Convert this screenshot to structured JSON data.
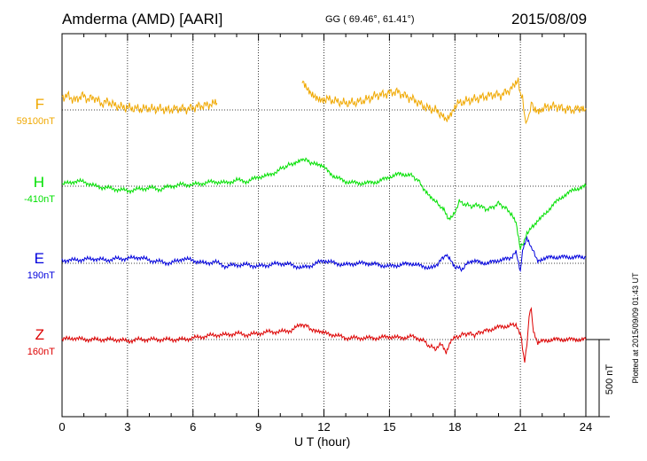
{
  "header": {
    "station": "Amderma (AMD)  [AARI]",
    "coords": "GG ( 69.46°,  61.41°)",
    "date": "2015/08/09"
  },
  "footer": {
    "plotted": "Plotted at 2015/09/09 01:43 UT",
    "scale": "500 nT"
  },
  "chart_data": {
    "type": "line",
    "title": "Amderma (AMD)  [AARI]",
    "xlabel": "U T (hour)",
    "ylabel": "",
    "xlim": [
      0,
      24
    ],
    "xticks": [
      0,
      3,
      6,
      9,
      12,
      15,
      18,
      21,
      24
    ],
    "grid": true,
    "scale_bar_nT": 500,
    "colors": {
      "F": "#f0a800",
      "H": "#00e000",
      "E": "#0000dd",
      "Z": "#dd0000"
    },
    "series": [
      {
        "name": "F",
        "baseline": "59100nT",
        "color": "#f0a800",
        "gaps": [
          [
            7.1,
            11.0
          ]
        ],
        "x": [
          0,
          0.3,
          0.6,
          0.9,
          1.2,
          1.5,
          1.8,
          2.1,
          2.4,
          2.7,
          3.0,
          3.3,
          3.6,
          3.9,
          4.2,
          4.5,
          4.8,
          5.1,
          5.4,
          5.7,
          6.0,
          6.3,
          6.6,
          6.9,
          7.1,
          11.0,
          11.2,
          11.4,
          11.6,
          11.8,
          12.0,
          12.3,
          12.6,
          12.9,
          13.2,
          13.5,
          13.8,
          14.1,
          14.4,
          14.7,
          15.0,
          15.3,
          15.6,
          15.9,
          16.2,
          16.5,
          16.8,
          17.1,
          17.4,
          17.6,
          17.8,
          18.0,
          18.3,
          18.6,
          18.9,
          19.2,
          19.5,
          19.8,
          20.1,
          20.4,
          20.7,
          20.9,
          21.0,
          21.1,
          21.2,
          21.3,
          21.4,
          21.5,
          21.6,
          21.8,
          22.0,
          22.3,
          22.6,
          22.9,
          23.2,
          23.5,
          23.8,
          24.0
        ],
        "values": [
          85,
          90,
          60,
          95,
          70,
          80,
          40,
          55,
          30,
          20,
          15,
          10,
          5,
          10,
          5,
          8,
          0,
          5,
          10,
          5,
          15,
          25,
          30,
          40,
          45,
          180,
          140,
          110,
          95,
          80,
          75,
          65,
          55,
          45,
          45,
          50,
          60,
          75,
          95,
          100,
          110,
          120,
          100,
          80,
          60,
          30,
          10,
          0,
          -30,
          -60,
          -20,
          30,
          50,
          60,
          70,
          80,
          90,
          100,
          95,
          120,
          150,
          180,
          120,
          60,
          -30,
          -100,
          -20,
          40,
          10,
          0,
          10,
          20,
          25,
          10,
          5,
          0,
          20,
          10
        ]
      },
      {
        "name": "H",
        "baseline": "-410nT",
        "color": "#00e000",
        "x": [
          0,
          0.5,
          1.0,
          1.5,
          2.0,
          2.5,
          3.0,
          3.5,
          4.0,
          4.5,
          5.0,
          5.5,
          6.0,
          6.5,
          7.0,
          7.5,
          8.0,
          8.5,
          9.0,
          9.5,
          10.0,
          10.3,
          10.6,
          11.0,
          11.3,
          11.6,
          12.0,
          12.5,
          13.0,
          13.5,
          14.0,
          14.5,
          15.0,
          15.5,
          16.0,
          16.3,
          16.6,
          17.0,
          17.3,
          17.5,
          17.7,
          17.9,
          18.2,
          18.5,
          18.8,
          19.1,
          19.4,
          19.7,
          20.0,
          20.3,
          20.6,
          20.8,
          21.0,
          21.1,
          21.3,
          21.6,
          22.0,
          22.5,
          23.0,
          23.5,
          24.0
        ],
        "values": [
          10,
          30,
          30,
          0,
          -10,
          -20,
          -30,
          -20,
          -10,
          -20,
          0,
          10,
          10,
          20,
          30,
          20,
          40,
          30,
          60,
          70,
          110,
          130,
          150,
          180,
          160,
          140,
          120,
          60,
          30,
          20,
          20,
          30,
          60,
          80,
          70,
          40,
          -20,
          -80,
          -130,
          -150,
          -220,
          -200,
          -100,
          -120,
          -130,
          -120,
          -150,
          -140,
          -110,
          -140,
          -180,
          -230,
          -400,
          -380,
          -300,
          -260,
          -200,
          -120,
          -60,
          -20,
          0
        ]
      },
      {
        "name": "E",
        "baseline": "190nT",
        "color": "#0000dd",
        "x": [
          0,
          0.5,
          1.0,
          1.5,
          2.0,
          2.5,
          3.0,
          3.5,
          4.0,
          4.5,
          5.0,
          5.5,
          6.0,
          6.5,
          7.0,
          7.5,
          8.0,
          8.5,
          9.0,
          9.5,
          10.0,
          10.5,
          11.0,
          11.5,
          12.0,
          12.5,
          13.0,
          13.5,
          14.0,
          14.5,
          15.0,
          15.5,
          16.0,
          16.5,
          17.0,
          17.3,
          17.6,
          17.8,
          18.0,
          18.3,
          18.6,
          19.0,
          19.5,
          20.0,
          20.5,
          20.8,
          21.0,
          21.1,
          21.3,
          21.5,
          21.8,
          22.0,
          22.5,
          23.0,
          23.5,
          24.0
        ],
        "values": [
          20,
          20,
          25,
          30,
          20,
          30,
          30,
          40,
          20,
          10,
          0,
          30,
          20,
          0,
          10,
          -20,
          -10,
          -10,
          -20,
          -10,
          0,
          -10,
          -30,
          -10,
          20,
          0,
          -10,
          0,
          0,
          -10,
          -20,
          -10,
          0,
          -20,
          -30,
          10,
          60,
          30,
          -20,
          -40,
          0,
          10,
          0,
          20,
          30,
          70,
          -60,
          80,
          160,
          100,
          20,
          30,
          40,
          40,
          40,
          40
        ]
      },
      {
        "name": "Z",
        "baseline": "160nT",
        "color": "#dd0000",
        "x": [
          0,
          0.5,
          1.0,
          1.5,
          2.0,
          2.5,
          3.0,
          3.5,
          4.0,
          4.5,
          5.0,
          5.5,
          6.0,
          6.5,
          7.0,
          7.5,
          8.0,
          8.5,
          9.0,
          9.5,
          10.0,
          10.5,
          11.0,
          11.3,
          11.6,
          12.0,
          12.5,
          13.0,
          13.5,
          14.0,
          14.5,
          15.0,
          15.5,
          16.0,
          16.5,
          16.8,
          17.1,
          17.4,
          17.6,
          17.8,
          18.0,
          18.3,
          18.6,
          18.9,
          19.2,
          19.5,
          20.0,
          20.5,
          20.8,
          21.0,
          21.1,
          21.2,
          21.3,
          21.4,
          21.5,
          21.6,
          21.8,
          22.0,
          22.5,
          23.0,
          23.5,
          24.0
        ],
        "values": [
          0,
          10,
          0,
          0,
          0,
          0,
          -10,
          0,
          0,
          0,
          0,
          0,
          10,
          20,
          30,
          30,
          40,
          30,
          40,
          50,
          50,
          60,
          100,
          80,
          50,
          40,
          30,
          10,
          10,
          10,
          10,
          20,
          10,
          20,
          0,
          -40,
          -60,
          -30,
          -90,
          -20,
          10,
          30,
          40,
          30,
          50,
          60,
          80,
          90,
          100,
          40,
          -50,
          -150,
          -30,
          150,
          200,
          50,
          -30,
          -10,
          0,
          0,
          0,
          0
        ]
      }
    ]
  }
}
